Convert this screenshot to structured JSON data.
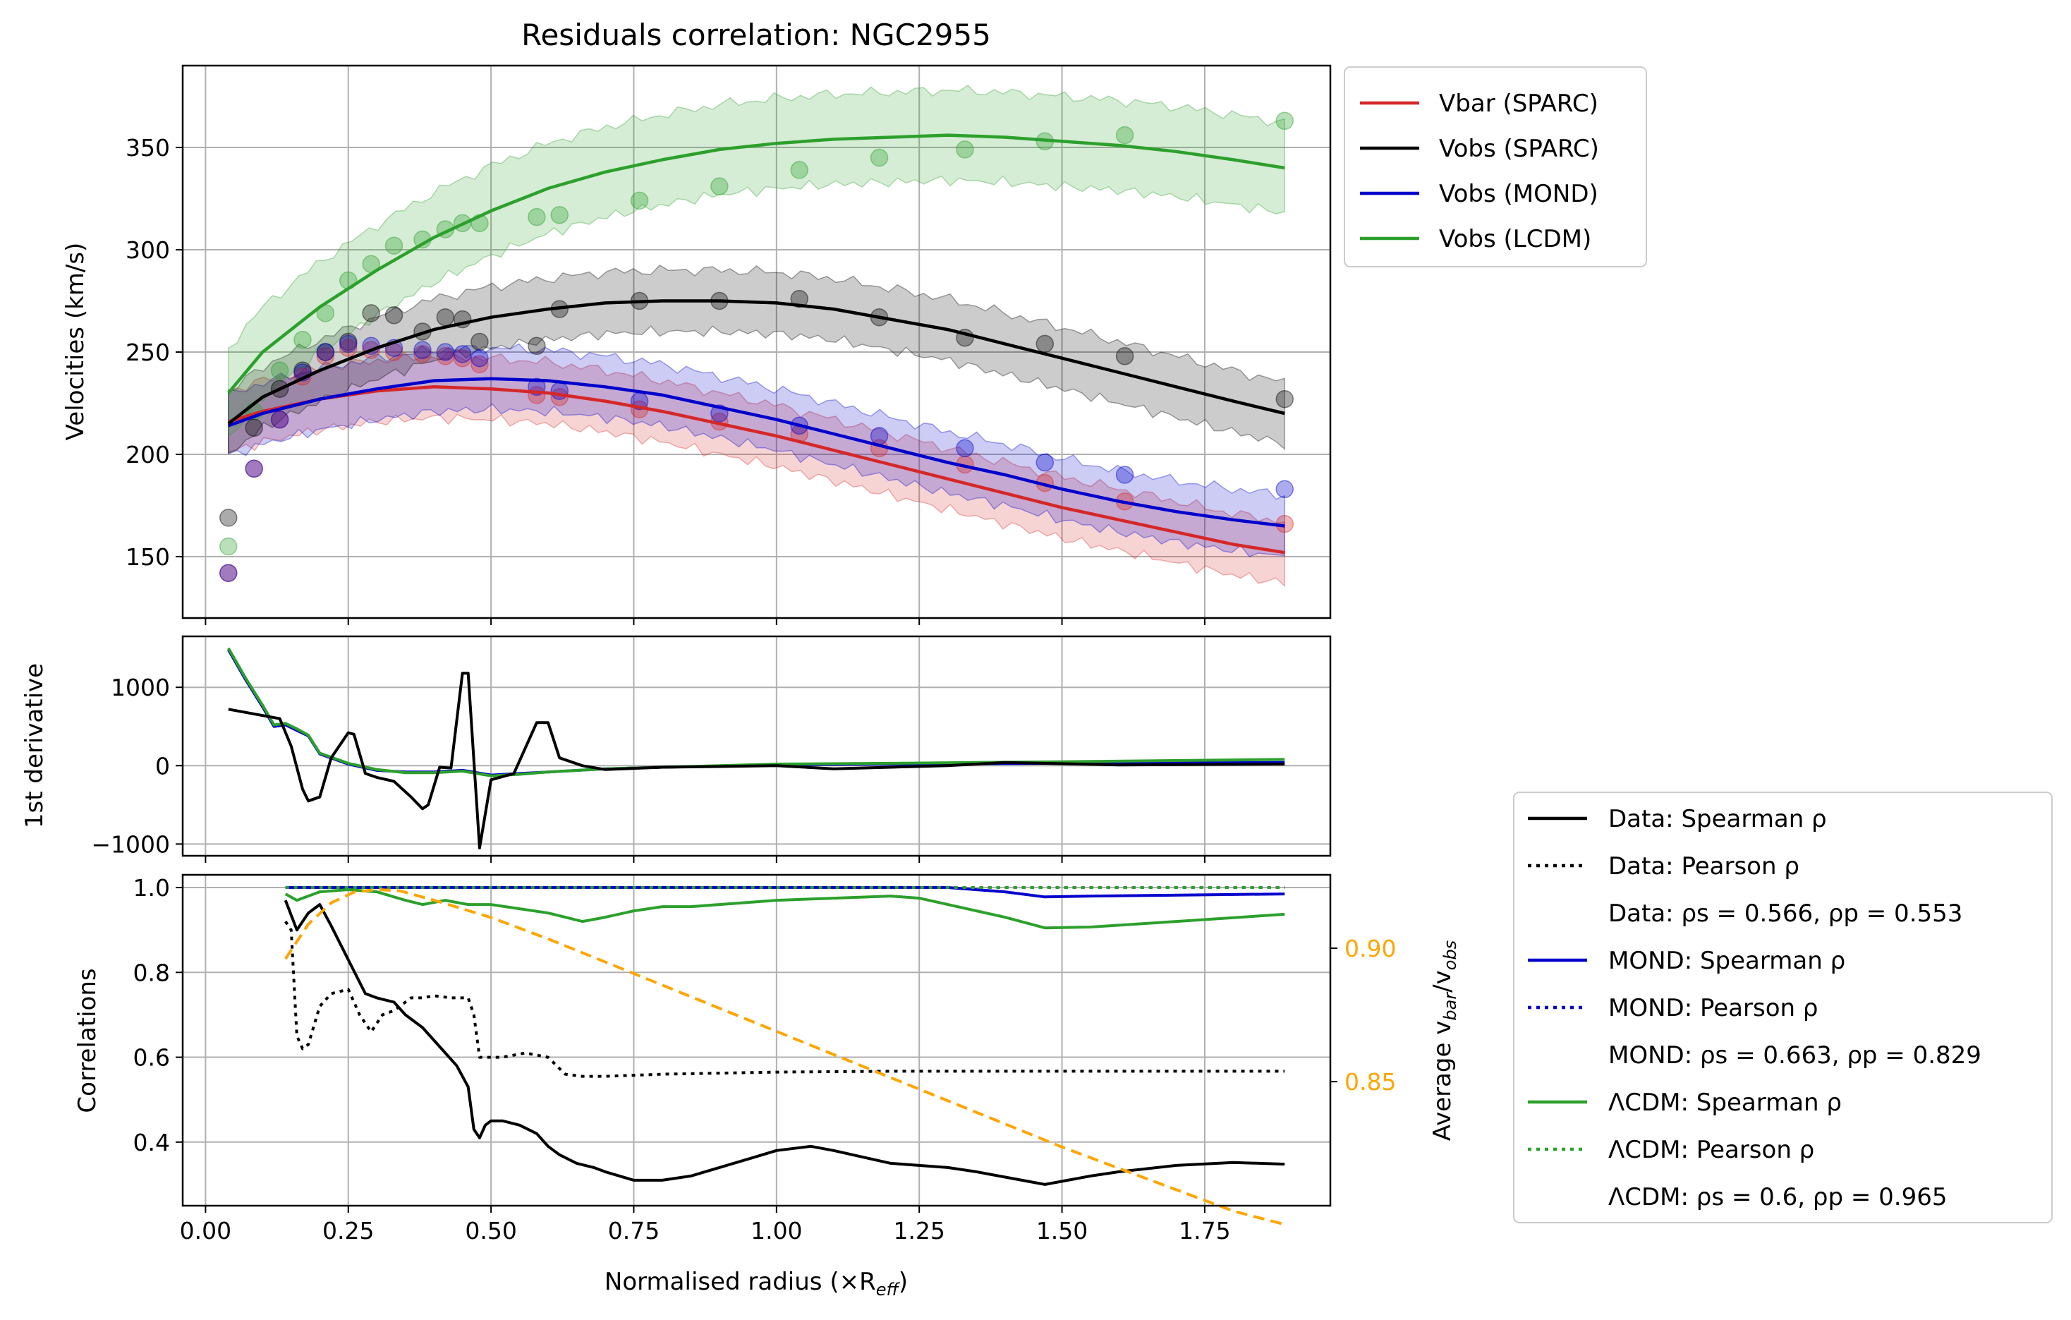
{
  "title": "Residuals correlation: NGC2955",
  "colors": {
    "vbar": "#d62728",
    "sparc": "#000000",
    "mond": "#0000cc",
    "lcdm": "#2ca02c",
    "ratio": "#ffa500",
    "grid": "#b0b0b0"
  },
  "chart_data": [
    {
      "type": "line",
      "panel": "velocities",
      "ylabel": "Velocities (km/s)",
      "xlim": [
        -0.04,
        1.97
      ],
      "ylim": [
        120,
        390
      ],
      "xticks": [
        0,
        0.25,
        0.5,
        0.75,
        1.0,
        1.25,
        1.5,
        1.75
      ],
      "yticks": [
        150,
        200,
        250,
        300,
        350
      ],
      "ytick_labels": [
        "150",
        "200",
        "250",
        "300",
        "350"
      ],
      "grid": true,
      "legend": {
        "position": "outside-right-top",
        "entries": [
          {
            "key": "vbar",
            "label": "Vbar (SPARC)"
          },
          {
            "key": "sparc",
            "label": "Vobs (SPARC)"
          },
          {
            "key": "mond",
            "label": "Vobs (MOND)"
          },
          {
            "key": "lcdm",
            "label": "Vobs (LCDM)"
          }
        ]
      },
      "curve_x": [
        0.04,
        0.1,
        0.2,
        0.3,
        0.4,
        0.5,
        0.6,
        0.7,
        0.8,
        0.9,
        1.0,
        1.1,
        1.2,
        1.3,
        1.4,
        1.5,
        1.6,
        1.7,
        1.8,
        1.89
      ],
      "series": [
        {
          "key": "vbar",
          "band_halfwidth": 15,
          "values": [
            216,
            221,
            227,
            231,
            233,
            232,
            230,
            226,
            221,
            215,
            209,
            202,
            195,
            188,
            181,
            174,
            168,
            162,
            156,
            152
          ]
        },
        {
          "key": "mond",
          "band_halfwidth": 15,
          "values": [
            214,
            220,
            227,
            232,
            236,
            237,
            236,
            233,
            229,
            223,
            217,
            210,
            203,
            196,
            190,
            183,
            177,
            172,
            168,
            165
          ]
        },
        {
          "key": "sparc",
          "band_halfwidth": 15,
          "values": [
            215,
            228,
            241,
            252,
            261,
            267,
            271,
            274,
            275,
            275,
            274,
            271,
            266,
            261,
            254,
            247,
            240,
            233,
            226,
            220
          ]
        },
        {
          "key": "lcdm",
          "band_halfwidth": 22,
          "values": [
            230,
            250,
            272,
            290,
            306,
            319,
            330,
            338,
            344,
            349,
            352,
            354,
            355,
            356,
            355,
            353,
            351,
            348,
            344,
            340
          ]
        }
      ],
      "points": {
        "sparc_x": [
          0.04,
          0.085,
          0.13,
          0.17,
          0.21,
          0.25,
          0.29,
          0.33,
          0.38,
          0.42,
          0.45,
          0.48,
          0.58,
          0.62,
          0.76,
          0.9,
          1.04,
          1.18,
          1.33,
          1.47,
          1.61,
          1.89
        ],
        "sparc": [
          169,
          213,
          232,
          241,
          250,
          255,
          269,
          268,
          260,
          267,
          266,
          255,
          253,
          271,
          275,
          275,
          276,
          267,
          257,
          254,
          248,
          227
        ],
        "vbar": [
          142,
          193,
          217,
          238,
          248,
          252,
          251,
          250,
          249,
          248,
          247,
          244,
          229,
          228,
          222,
          216,
          210,
          203,
          195,
          186,
          177,
          166
        ],
        "mond": [
          142,
          193,
          217,
          240,
          250,
          254,
          253,
          252,
          251,
          250,
          249,
          247,
          233,
          231,
          226,
          220,
          214,
          209,
          203,
          196,
          190,
          183
        ],
        "lcdm": [
          155,
          221,
          241,
          256,
          269,
          285,
          293,
          302,
          305,
          310,
          313,
          313,
          316,
          317,
          324,
          331,
          339,
          345,
          349,
          353,
          356,
          363
        ]
      }
    },
    {
      "type": "line",
      "panel": "derivative",
      "ylabel": "1st derivative",
      "xlim": [
        -0.04,
        1.97
      ],
      "ylim": [
        -1150,
        1650
      ],
      "yticks": [
        -1000,
        0,
        1000
      ],
      "ytick_labels": [
        "−1000",
        "0",
        "1000"
      ],
      "grid": true,
      "series": [
        {
          "key": "sparc",
          "x": [
            0.04,
            0.1,
            0.13,
            0.15,
            0.17,
            0.18,
            0.2,
            0.22,
            0.25,
            0.26,
            0.28,
            0.3,
            0.33,
            0.36,
            0.38,
            0.39,
            0.41,
            0.43,
            0.45,
            0.46,
            0.48,
            0.5,
            0.54,
            0.58,
            0.6,
            0.62,
            0.66,
            0.7,
            0.8,
            1.0,
            1.1,
            1.3,
            1.4,
            1.6,
            1.89
          ],
          "y": [
            720,
            640,
            600,
            250,
            -300,
            -450,
            -400,
            100,
            420,
            400,
            -100,
            -150,
            -200,
            -400,
            -550,
            -500,
            -20,
            -30,
            1180,
            1180,
            -1050,
            -180,
            -100,
            550,
            550,
            100,
            0,
            -50,
            -20,
            0,
            -40,
            0,
            40,
            10,
            20
          ]
        },
        {
          "key": "mond",
          "x": [
            0.04,
            0.07,
            0.1,
            0.12,
            0.14,
            0.16,
            0.18,
            0.2,
            0.25,
            0.3,
            0.35,
            0.4,
            0.45,
            0.5,
            0.55,
            0.6,
            0.7,
            0.8,
            1.0,
            1.2,
            1.5,
            1.89
          ],
          "y": [
            1480,
            1100,
            750,
            500,
            520,
            450,
            380,
            150,
            20,
            -60,
            -80,
            -80,
            -60,
            -120,
            -100,
            -80,
            -40,
            -20,
            10,
            20,
            30,
            40
          ]
        },
        {
          "key": "lcdm",
          "x": [
            0.04,
            0.07,
            0.1,
            0.12,
            0.14,
            0.16,
            0.18,
            0.2,
            0.25,
            0.3,
            0.35,
            0.4,
            0.45,
            0.5,
            0.55,
            0.6,
            0.7,
            0.8,
            1.0,
            1.2,
            1.5,
            1.89
          ],
          "y": [
            1500,
            1120,
            770,
            520,
            540,
            470,
            390,
            160,
            30,
            -50,
            -90,
            -90,
            -70,
            -130,
            -110,
            -80,
            -40,
            -20,
            20,
            30,
            50,
            80
          ]
        }
      ]
    },
    {
      "type": "line",
      "panel": "correlations",
      "xlabel": "Normalised radius (×R",
      "xlabel_sub": "eff",
      "xlabel_end": ")",
      "ylabel": "Correlations",
      "y2label": "Average v",
      "y2label_sub1": "bar",
      "y2label_mid": "/v",
      "y2label_sub2": "obs",
      "xlim": [
        -0.04,
        1.97
      ],
      "ylim": [
        0.25,
        1.03
      ],
      "y2lim": [
        0.8035,
        0.9275
      ],
      "xticks": [
        0,
        0.25,
        0.5,
        0.75,
        1.0,
        1.25,
        1.5,
        1.75
      ],
      "xtick_labels": [
        "0.00",
        "0.25",
        "0.50",
        "0.75",
        "1.00",
        "1.25",
        "1.50",
        "1.75"
      ],
      "yticks": [
        0.4,
        0.6,
        0.8,
        1.0
      ],
      "ytick_labels": [
        "0.4",
        "0.6",
        "0.8",
        "1.0"
      ],
      "y2ticks": [
        0.85,
        0.9
      ],
      "y2tick_labels": [
        "0.85",
        "0.90"
      ],
      "grid": true,
      "legend": {
        "position": "outside-bottom-right",
        "entries": [
          {
            "key": "sparc",
            "style": "solid",
            "label": "Data: Spearman ρ"
          },
          {
            "key": "sparc",
            "style": "dotted",
            "label": "Data: Pearson ρ"
          },
          {
            "key": "none",
            "style": "none",
            "label": "Data: ρs = 0.566, ρp = 0.553"
          },
          {
            "key": "mond",
            "style": "solid",
            "label": "MOND: Spearman ρ"
          },
          {
            "key": "mond",
            "style": "dotted",
            "label": "MOND: Pearson ρ"
          },
          {
            "key": "none",
            "style": "none",
            "label": "MOND: ρs = 0.663, ρp = 0.829"
          },
          {
            "key": "lcdm",
            "style": "solid",
            "label": "ΛCDM: Spearman ρ"
          },
          {
            "key": "lcdm",
            "style": "dotted",
            "label": "ΛCDM: Pearson ρ"
          },
          {
            "key": "none",
            "style": "none",
            "label": "ΛCDM: ρs = 0.6, ρp = 0.965"
          }
        ]
      },
      "series": [
        {
          "key": "sparc",
          "style": "solid",
          "x": [
            0.14,
            0.16,
            0.18,
            0.2,
            0.22,
            0.25,
            0.28,
            0.3,
            0.33,
            0.35,
            0.38,
            0.4,
            0.42,
            0.44,
            0.46,
            0.47,
            0.48,
            0.49,
            0.5,
            0.52,
            0.55,
            0.58,
            0.6,
            0.62,
            0.65,
            0.68,
            0.7,
            0.75,
            0.8,
            0.85,
            0.9,
            0.95,
            1.0,
            1.06,
            1.1,
            1.2,
            1.3,
            1.35,
            1.47,
            1.55,
            1.6,
            1.7,
            1.8,
            1.89
          ],
          "y": [
            0.97,
            0.9,
            0.94,
            0.96,
            0.91,
            0.83,
            0.75,
            0.74,
            0.73,
            0.7,
            0.67,
            0.64,
            0.61,
            0.58,
            0.53,
            0.43,
            0.41,
            0.44,
            0.45,
            0.45,
            0.44,
            0.42,
            0.39,
            0.37,
            0.35,
            0.34,
            0.33,
            0.31,
            0.31,
            0.32,
            0.34,
            0.36,
            0.38,
            0.39,
            0.38,
            0.35,
            0.34,
            0.33,
            0.3,
            0.32,
            0.33,
            0.345,
            0.352,
            0.348
          ]
        },
        {
          "key": "sparc",
          "style": "dotted",
          "x": [
            0.14,
            0.15,
            0.16,
            0.17,
            0.18,
            0.2,
            0.22,
            0.25,
            0.27,
            0.29,
            0.31,
            0.33,
            0.36,
            0.38,
            0.4,
            0.43,
            0.46,
            0.47,
            0.48,
            0.52,
            0.56,
            0.6,
            0.63,
            0.66,
            0.7,
            0.8,
            1.0,
            1.2,
            1.5,
            1.89
          ],
          "y": [
            0.92,
            0.9,
            0.65,
            0.62,
            0.63,
            0.72,
            0.75,
            0.76,
            0.7,
            0.66,
            0.7,
            0.71,
            0.74,
            0.74,
            0.745,
            0.74,
            0.74,
            0.7,
            0.6,
            0.6,
            0.61,
            0.6,
            0.56,
            0.555,
            0.555,
            0.56,
            0.565,
            0.567,
            0.567,
            0.567
          ]
        },
        {
          "key": "mond",
          "style": "solid",
          "x": [
            0.14,
            0.5,
            1.0,
            1.3,
            1.4,
            1.47,
            1.55,
            1.89
          ],
          "y": [
            1.0,
            1.0,
            1.0,
            1.0,
            0.99,
            0.978,
            0.98,
            0.985
          ]
        },
        {
          "key": "mond",
          "style": "dotted",
          "x": [
            0.14,
            1.89
          ],
          "y": [
            1.0,
            1.0
          ]
        },
        {
          "key": "lcdm",
          "style": "solid",
          "x": [
            0.14,
            0.16,
            0.2,
            0.25,
            0.3,
            0.35,
            0.38,
            0.42,
            0.46,
            0.5,
            0.55,
            0.6,
            0.66,
            0.7,
            0.75,
            0.8,
            0.85,
            0.9,
            1.0,
            1.1,
            1.2,
            1.25,
            1.3,
            1.4,
            1.47,
            1.55,
            1.7,
            1.89
          ],
          "y": [
            0.985,
            0.97,
            0.99,
            0.995,
            0.99,
            0.97,
            0.96,
            0.97,
            0.96,
            0.96,
            0.95,
            0.94,
            0.92,
            0.93,
            0.945,
            0.955,
            0.955,
            0.96,
            0.97,
            0.975,
            0.98,
            0.975,
            0.96,
            0.93,
            0.905,
            0.907,
            0.92,
            0.937
          ]
        },
        {
          "key": "lcdm",
          "style": "dotted",
          "x": [
            0.14,
            1.89
          ],
          "y": [
            1.0,
            1.0
          ]
        },
        {
          "key": "ratio",
          "style": "dashed",
          "axis": "y2",
          "x": [
            0.14,
            0.18,
            0.22,
            0.26,
            0.3,
            0.34,
            0.4,
            0.5,
            0.6,
            0.75,
            0.9,
            1.05,
            1.2,
            1.35,
            1.5,
            1.65,
            1.8,
            1.89
          ],
          "y": [
            0.896,
            0.909,
            0.917,
            0.921,
            0.922,
            0.9215,
            0.918,
            0.9115,
            0.9035,
            0.8905,
            0.8775,
            0.8645,
            0.8515,
            0.8385,
            0.8255,
            0.8135,
            0.8015,
            0.7965
          ]
        }
      ]
    }
  ]
}
